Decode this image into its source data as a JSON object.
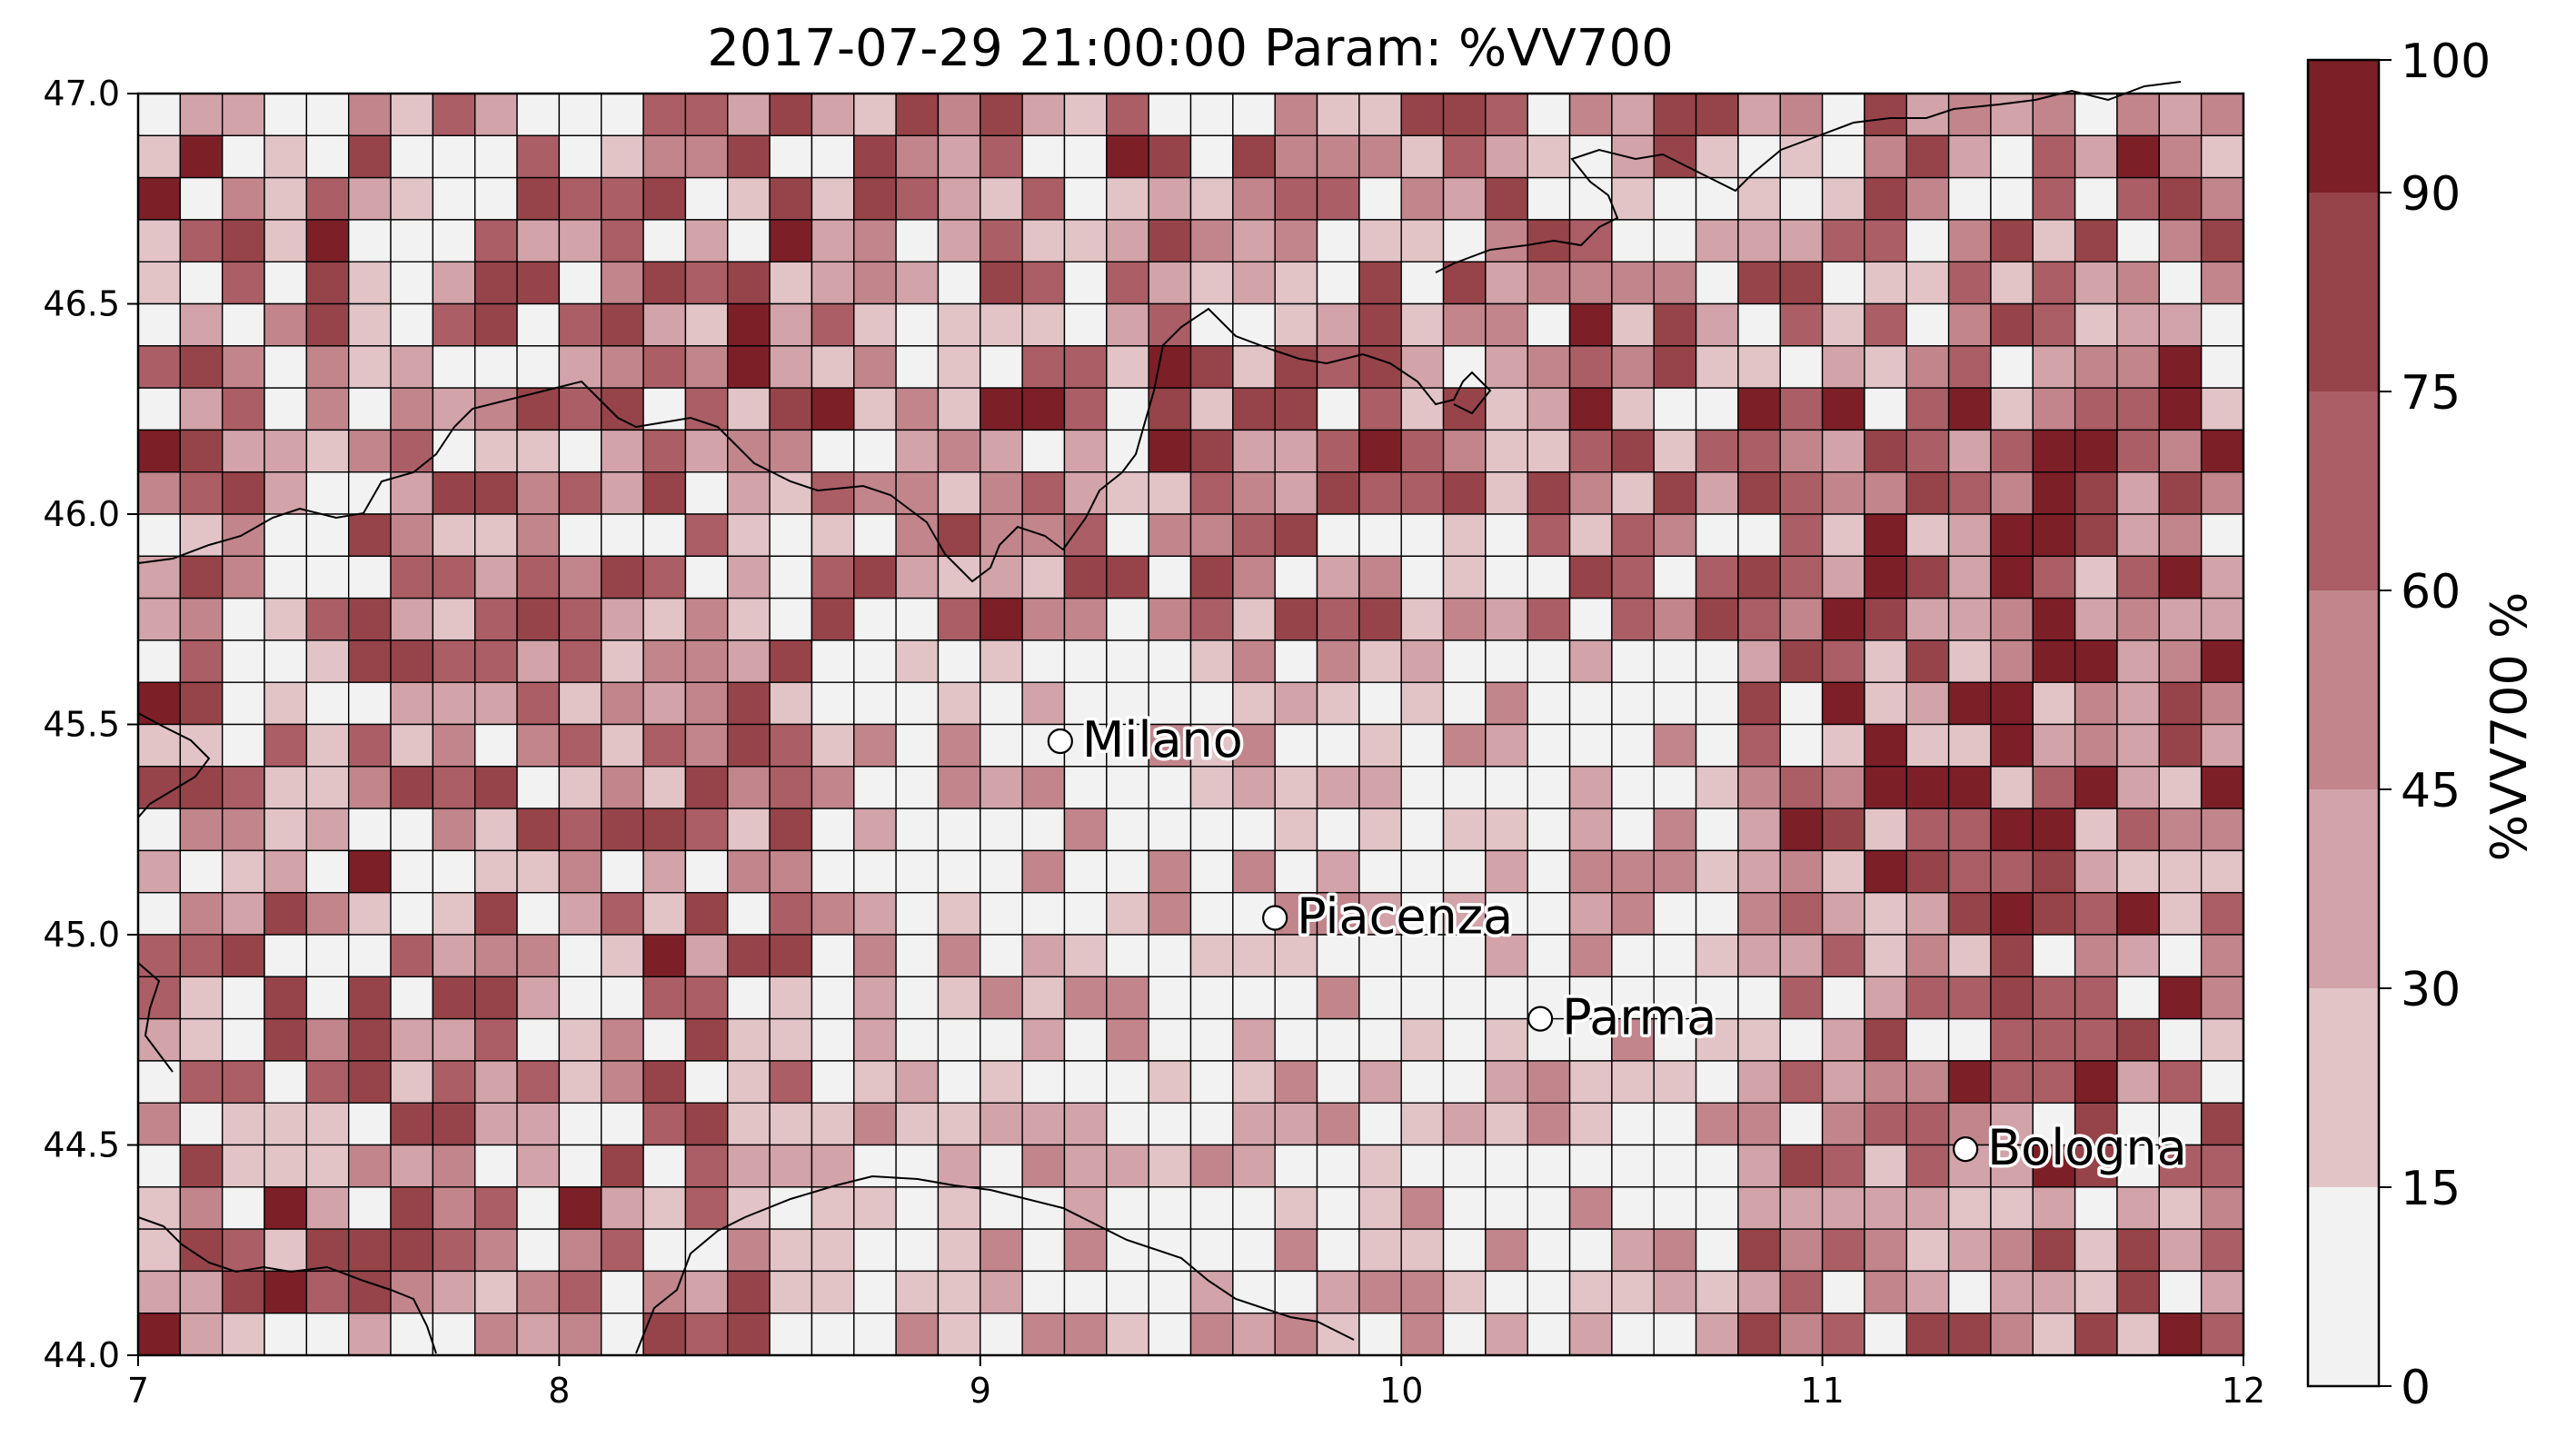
{
  "title": "2017-07-29 21:00:00 Param: %VV700",
  "map": {
    "lon_range": [
      7,
      12
    ],
    "lat_range": [
      44,
      47
    ],
    "x_ticks": [
      "7",
      "8",
      "9",
      "10",
      "11",
      "12"
    ],
    "y_ticks": [
      "44.0",
      "44.5",
      "45.0",
      "45.5",
      "46.0",
      "46.5",
      "47.0"
    ],
    "grid_cols": 50,
    "grid_rows": 30,
    "cities": [
      {
        "name": "Milano",
        "lon": 9.19,
        "lat": 45.46
      },
      {
        "name": "Piacenza",
        "lon": 9.7,
        "lat": 45.04
      },
      {
        "name": "Parma",
        "lon": 10.33,
        "lat": 44.8
      },
      {
        "name": "Bologna",
        "lon": 11.34,
        "lat": 44.49
      }
    ]
  },
  "colorbar": {
    "label": "%VV700 %",
    "ticks": [
      "0",
      "15",
      "30",
      "45",
      "60",
      "75",
      "90",
      "100"
    ],
    "levels": [
      0,
      15,
      30,
      45,
      60,
      75,
      90,
      100
    ],
    "colors": [
      "#f2f2f2",
      "#e2c4c7",
      "#d2a3a8",
      "#c2858c",
      "#ab5e65",
      "#964449",
      "#7d1f27",
      "#6b0000"
    ]
  }
}
